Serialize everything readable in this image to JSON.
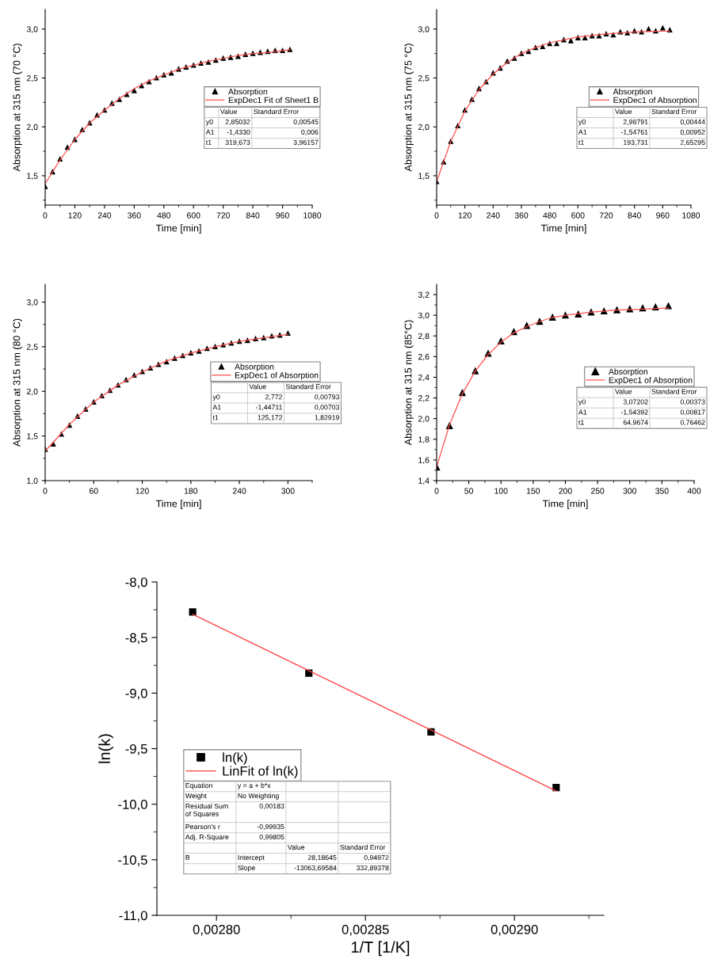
{
  "chart_data": [
    {
      "type": "scatter",
      "xlabel": "Time [min]",
      "ylabel": "Absorption at 315 nm (70 °C)",
      "xlim": [
        0,
        1080
      ],
      "ylim": [
        1.2,
        3.2
      ],
      "xticks": [
        0,
        {
          "value": 60,
          "label": null
        },
        120,
        {
          "value": 180,
          "label": null
        },
        240,
        {
          "value": 300,
          "label": null
        },
        360,
        {
          "value": 420,
          "label": null
        },
        480,
        {
          "value": 540,
          "label": null
        },
        600,
        {
          "value": 660,
          "label": null
        },
        720,
        {
          "value": 780,
          "label": null
        },
        840,
        {
          "value": 900,
          "label": null
        },
        960,
        {
          "value": 1020,
          "label": null
        },
        1080
      ],
      "yticks": [
        {
          "value": 1.25,
          "label": null
        },
        {
          "value": 1.5,
          "label": "1,5"
        },
        {
          "value": 1.75,
          "label": null
        },
        {
          "value": 2.0,
          "label": "2,0"
        },
        {
          "value": 2.25,
          "label": null
        },
        {
          "value": 2.5,
          "label": "2,5"
        },
        {
          "value": 2.75,
          "label": null
        },
        {
          "value": 3.0,
          "label": "3,0"
        }
      ],
      "legend": "center right",
      "grid": false,
      "series": [
        {
          "name": "Absorption",
          "type": "scatter",
          "marker": "triangle",
          "color": "#000000",
          "x": [
            0,
            30,
            60,
            90,
            120,
            150,
            180,
            210,
            240,
            270,
            300,
            330,
            360,
            390,
            420,
            450,
            480,
            510,
            540,
            570,
            600,
            630,
            660,
            690,
            720,
            750,
            780,
            810,
            840,
            870,
            900,
            930,
            960,
            990
          ],
          "values": [
            1.39,
            1.54,
            1.67,
            1.79,
            1.87,
            1.97,
            2.04,
            2.12,
            2.17,
            2.24,
            2.28,
            2.33,
            2.37,
            2.42,
            2.46,
            2.5,
            2.53,
            2.55,
            2.59,
            2.61,
            2.63,
            2.65,
            2.66,
            2.68,
            2.7,
            2.71,
            2.72,
            2.74,
            2.75,
            2.76,
            2.77,
            2.78,
            2.78,
            2.79
          ]
        },
        {
          "name": "ExpDec1 Fit of Sheet1 B",
          "type": "line",
          "color": "#ff5050",
          "x": [
            0,
            60,
            120,
            180,
            240,
            300,
            360,
            420,
            480,
            540,
            600,
            660,
            720,
            780,
            840,
            900,
            960,
            990
          ],
          "values": [
            1.42,
            1.66,
            1.87,
            2.04,
            2.17,
            2.29,
            2.39,
            2.47,
            2.53,
            2.59,
            2.63,
            2.67,
            2.7,
            2.73,
            2.75,
            2.76,
            2.78,
            2.79
          ]
        }
      ],
      "annotations": [
        "\tValue\tStandard Error",
        "y0\t2,85032\t0,00545",
        "A1\t-1,4330\t0,006",
        "t1\t319,673\t3,96157"
      ]
    },
    {
      "type": "scatter",
      "xlabel": "Time [min]",
      "ylabel": "Absorption at 315 nm (75 °C)",
      "xlim": [
        0,
        1080
      ],
      "ylim": [
        1.2,
        3.2
      ],
      "xticks": [
        0,
        {
          "value": 60,
          "label": null
        },
        120,
        {
          "value": 180,
          "label": null
        },
        240,
        {
          "value": 300,
          "label": null
        },
        360,
        {
          "value": 420,
          "label": null
        },
        480,
        {
          "value": 540,
          "label": null
        },
        600,
        {
          "value": 660,
          "label": null
        },
        720,
        {
          "value": 780,
          "label": null
        },
        840,
        {
          "value": 900,
          "label": null
        },
        960,
        {
          "value": 1020,
          "label": null
        },
        1080
      ],
      "yticks": [
        {
          "value": 1.25,
          "label": null
        },
        {
          "value": 1.5,
          "label": "1,5"
        },
        {
          "value": 1.75,
          "label": null
        },
        {
          "value": 2.0,
          "label": "2,0"
        },
        {
          "value": 2.25,
          "label": null
        },
        {
          "value": 2.5,
          "label": "2,5"
        },
        {
          "value": 2.75,
          "label": null
        },
        {
          "value": 3.0,
          "label": "3,0"
        }
      ],
      "legend": "center right",
      "grid": false,
      "series": [
        {
          "name": "Absorption",
          "type": "scatter",
          "marker": "triangle",
          "color": "#000000",
          "x": [
            0,
            30,
            60,
            90,
            120,
            150,
            180,
            210,
            240,
            270,
            300,
            330,
            360,
            390,
            420,
            450,
            480,
            510,
            540,
            570,
            600,
            630,
            660,
            690,
            720,
            750,
            780,
            810,
            840,
            870,
            900,
            930,
            960,
            990
          ],
          "values": [
            1.44,
            1.64,
            1.85,
            2.01,
            2.17,
            2.28,
            2.39,
            2.46,
            2.55,
            2.6,
            2.67,
            2.7,
            2.75,
            2.77,
            2.81,
            2.82,
            2.85,
            2.85,
            2.89,
            2.88,
            2.91,
            2.91,
            2.93,
            2.93,
            2.95,
            2.94,
            2.97,
            2.96,
            2.98,
            2.97,
            3.0,
            2.98,
            3.01,
            2.99
          ]
        },
        {
          "name": "ExpDec1 of Absorption",
          "type": "line",
          "color": "#ff5050",
          "x": [
            0,
            60,
            120,
            180,
            240,
            300,
            360,
            420,
            480,
            540,
            600,
            720,
            840,
            990
          ],
          "values": [
            1.44,
            1.85,
            2.16,
            2.38,
            2.54,
            2.66,
            2.75,
            2.81,
            2.86,
            2.89,
            2.92,
            2.95,
            2.97,
            2.98
          ]
        }
      ],
      "annotations": [
        "\tValue\tStandard Error",
        "y0\t2,98791\t0,00444",
        "A1\t-1,54761\t0,00952",
        "t1\t193,731\t2,65295"
      ]
    },
    {
      "type": "scatter",
      "xlabel": "Time [min]",
      "ylabel": "Absorption at 315 nm (80 °C)",
      "xlim": [
        0,
        330
      ],
      "ylim": [
        1.0,
        3.2
      ],
      "xticks": [
        0,
        {
          "value": 30,
          "label": null
        },
        60,
        {
          "value": 90,
          "label": null
        },
        120,
        {
          "value": 150,
          "label": null
        },
        180,
        {
          "value": 210,
          "label": null
        },
        240,
        {
          "value": 270,
          "label": null
        },
        300,
        {
          "value": 330,
          "label": null
        }
      ],
      "yticks": [
        {
          "value": 1.0,
          "label": "1,0"
        },
        {
          "value": 1.25,
          "label": null
        },
        {
          "value": 1.5,
          "label": "1,5"
        },
        {
          "value": 1.75,
          "label": null
        },
        {
          "value": 2.0,
          "label": "2,0"
        },
        {
          "value": 2.25,
          "label": null
        },
        {
          "value": 2.5,
          "label": "2,5"
        },
        {
          "value": 2.75,
          "label": null
        },
        {
          "value": 3.0,
          "label": "3,0"
        }
      ],
      "legend": "center right",
      "grid": false,
      "series": [
        {
          "name": "Absorption",
          "type": "scatter",
          "marker": "triangle",
          "color": "#000000",
          "x": [
            0,
            10,
            20,
            30,
            40,
            50,
            60,
            70,
            80,
            90,
            100,
            110,
            120,
            130,
            140,
            150,
            160,
            170,
            180,
            190,
            200,
            210,
            220,
            230,
            240,
            250,
            260,
            270,
            280,
            290,
            300
          ],
          "values": [
            1.35,
            1.41,
            1.52,
            1.62,
            1.72,
            1.8,
            1.88,
            1.95,
            2.01,
            2.07,
            2.13,
            2.18,
            2.22,
            2.26,
            2.3,
            2.33,
            2.37,
            2.4,
            2.43,
            2.45,
            2.48,
            2.5,
            2.52,
            2.54,
            2.56,
            2.57,
            2.59,
            2.6,
            2.62,
            2.63,
            2.65
          ]
        },
        {
          "name": "ExpDec1 of Absorption",
          "type": "line",
          "color": "#ff5050",
          "x": [
            0,
            30,
            60,
            90,
            120,
            150,
            180,
            210,
            240,
            270,
            300
          ],
          "values": [
            1.33,
            1.63,
            1.88,
            2.07,
            2.22,
            2.34,
            2.43,
            2.5,
            2.56,
            2.6,
            2.64
          ]
        }
      ],
      "annotations": [
        "\tValue\tStandard Error",
        "y0\t2,772\t0,00793",
        "A1\t-1,44711\t0,00703",
        "t1\t125,172\t1,82919"
      ]
    },
    {
      "type": "scatter",
      "xlabel": "Time [min]",
      "ylabel": "Absorption at 315 nm (85°C)",
      "xlim": [
        0,
        400
      ],
      "ylim": [
        1.4,
        3.3
      ],
      "xticks": [
        0,
        {
          "value": 25,
          "label": null
        },
        50,
        {
          "value": 75,
          "label": null
        },
        100,
        {
          "value": 125,
          "label": null
        },
        150,
        {
          "value": 175,
          "label": null
        },
        200,
        {
          "value": 225,
          "label": null
        },
        250,
        {
          "value": 275,
          "label": null
        },
        300,
        {
          "value": 325,
          "label": null
        },
        350,
        {
          "value": 375,
          "label": null
        },
        400
      ],
      "yticks": [
        {
          "value": 1.4,
          "label": "1,4"
        },
        {
          "value": 1.5,
          "label": null
        },
        {
          "value": 1.6,
          "label": "1,6"
        },
        {
          "value": 1.7,
          "label": null
        },
        {
          "value": 1.8,
          "label": "1,8"
        },
        {
          "value": 1.9,
          "label": null
        },
        {
          "value": 2.0,
          "label": "2,0"
        },
        {
          "value": 2.1,
          "label": null
        },
        {
          "value": 2.2,
          "label": "2,2"
        },
        {
          "value": 2.3,
          "label": null
        },
        {
          "value": 2.4,
          "label": "2,4"
        },
        {
          "value": 2.5,
          "label": null
        },
        {
          "value": 2.6,
          "label": "2,6"
        },
        {
          "value": 2.7,
          "label": null
        },
        {
          "value": 2.8,
          "label": "2,8"
        },
        {
          "value": 2.9,
          "label": null
        },
        {
          "value": 3.0,
          "label": "3,0"
        },
        {
          "value": 3.1,
          "label": null
        },
        {
          "value": 3.2,
          "label": "3,2"
        }
      ],
      "legend": "center right",
      "grid": false,
      "series": [
        {
          "name": "Absorption",
          "type": "scatter",
          "marker": "triangle",
          "color": "#000000",
          "x": [
            0,
            20,
            40,
            60,
            80,
            100,
            120,
            140,
            160,
            180,
            200,
            220,
            240,
            260,
            280,
            300,
            320,
            340,
            360
          ],
          "values": [
            1.53,
            1.93,
            2.25,
            2.46,
            2.63,
            2.75,
            2.84,
            2.9,
            2.94,
            2.98,
            3.0,
            3.01,
            3.03,
            3.04,
            3.05,
            3.06,
            3.07,
            3.08,
            3.09
          ]
        },
        {
          "name": "ExpDec1 of Absorption",
          "type": "line",
          "color": "#ff5050",
          "x": [
            0,
            20,
            40,
            60,
            80,
            100,
            120,
            140,
            160,
            180,
            200,
            240,
            280,
            320,
            360
          ],
          "values": [
            1.53,
            1.94,
            2.24,
            2.46,
            2.62,
            2.74,
            2.83,
            2.89,
            2.94,
            2.98,
            3.0,
            3.03,
            3.05,
            3.06,
            3.07
          ]
        }
      ],
      "annotations": [
        "\tValue\tStandard Error",
        "y0\t3,07202\t0,00373",
        "A1\t-1,54392\t0,00817",
        "t1\t64,9674\t0,76462"
      ]
    },
    {
      "type": "scatter",
      "xlabel": "1/T [1/K]",
      "ylabel": "ln(k)",
      "xlim": [
        0.00278,
        0.00293
      ],
      "ylim": [
        -11.0,
        -8.0
      ],
      "xticks": [
        {
          "value": 0.0028,
          "label": "0,00280"
        },
        {
          "value": 0.002825,
          "label": null
        },
        {
          "value": 0.00285,
          "label": "0,00285"
        },
        {
          "value": 0.002875,
          "label": null
        },
        {
          "value": 0.0029,
          "label": "0,00290"
        },
        {
          "value": 0.002925,
          "label": null
        }
      ],
      "yticks": [
        {
          "value": -11.0,
          "label": "-11,0"
        },
        {
          "value": -10.75,
          "label": null
        },
        {
          "value": -10.5,
          "label": "-10,5"
        },
        {
          "value": -10.25,
          "label": null
        },
        {
          "value": -10.0,
          "label": "-10,0"
        },
        {
          "value": -9.75,
          "label": null
        },
        {
          "value": -9.5,
          "label": "-9,5"
        },
        {
          "value": -9.25,
          "label": null
        },
        {
          "value": -9.0,
          "label": "-9,0"
        },
        {
          "value": -8.75,
          "label": null
        },
        {
          "value": -8.5,
          "label": "-8,5"
        },
        {
          "value": -8.25,
          "label": null
        },
        {
          "value": -8.0,
          "label": "-8,0"
        }
      ],
      "legend": "center left",
      "grid": false,
      "series": [
        {
          "name": "ln(k)",
          "type": "scatter",
          "marker": "square",
          "color": "#000000",
          "x": [
            0.002792,
            0.002831,
            0.002872,
            0.002914
          ],
          "values": [
            -8.27,
            -8.82,
            -9.35,
            -9.85
          ]
        },
        {
          "name": "LinFit of ln(k)",
          "type": "line",
          "color": "#ff4040",
          "x": [
            0.002792,
            0.002914
          ],
          "values": [
            -8.29,
            -9.88
          ]
        }
      ],
      "annotations": [
        "Equation\ty = a + b*x\t\t",
        "Weight\tNo Weighting\t\t",
        "Residual Sum\nof Squares\t0,00183\t\t",
        "Pearson's r\t-0,99935\t\t",
        "Adj. R-Square\t0,99805\t\t",
        "\t\tValue\tStandard Error",
        "B\tIntercept\t28,18645\t0,94972",
        "\tSlope\t-13063,69584\t332,89378"
      ]
    }
  ]
}
